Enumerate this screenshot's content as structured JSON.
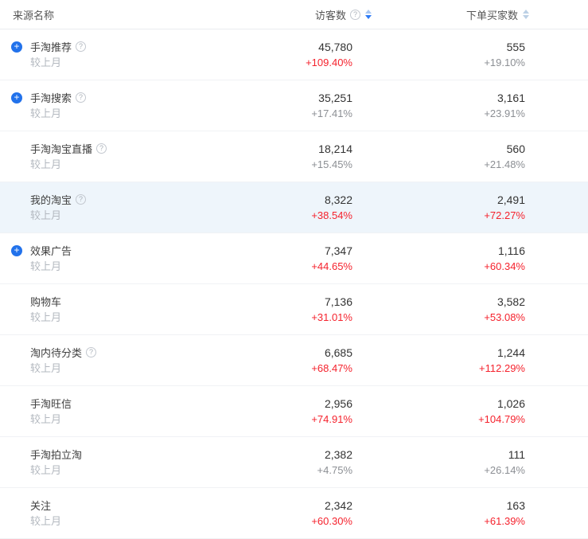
{
  "table": {
    "columns": {
      "source": "来源名称",
      "visitors": "访客数",
      "buyers": "下单买家数"
    },
    "sort_state": {
      "visitors": "descending",
      "buyers": "none"
    },
    "compare_label": "较上月",
    "icons": {
      "expand_glyph": "+",
      "help_glyph": "?"
    },
    "colors": {
      "accent_blue": "#2272eb",
      "sort_active_blue": "#2e7bf6",
      "rise_red": "#f5222d",
      "muted_gray": "#8c8f94",
      "highlight_row_bg": "#eef5fb"
    },
    "rows": [
      {
        "name": "手淘推荐",
        "expand": true,
        "help": true,
        "highlighted": false,
        "visitors": "45,780",
        "visitors_change": {
          "value": "+109.40%",
          "red": true
        },
        "buyers": "555",
        "buyers_change": {
          "value": "+19.10%",
          "red": false
        }
      },
      {
        "name": "手淘搜索",
        "expand": true,
        "help": true,
        "highlighted": false,
        "visitors": "35,251",
        "visitors_change": {
          "value": "+17.41%",
          "red": false
        },
        "buyers": "3,161",
        "buyers_change": {
          "value": "+23.91%",
          "red": false
        }
      },
      {
        "name": "手淘淘宝直播",
        "expand": false,
        "help": true,
        "highlighted": false,
        "visitors": "18,214",
        "visitors_change": {
          "value": "+15.45%",
          "red": false
        },
        "buyers": "560",
        "buyers_change": {
          "value": "+21.48%",
          "red": false
        }
      },
      {
        "name": "我的淘宝",
        "expand": false,
        "help": true,
        "highlighted": true,
        "visitors": "8,322",
        "visitors_change": {
          "value": "+38.54%",
          "red": true
        },
        "buyers": "2,491",
        "buyers_change": {
          "value": "+72.27%",
          "red": true
        }
      },
      {
        "name": "效果广告",
        "expand": true,
        "help": false,
        "highlighted": false,
        "visitors": "7,347",
        "visitors_change": {
          "value": "+44.65%",
          "red": true
        },
        "buyers": "1,116",
        "buyers_change": {
          "value": "+60.34%",
          "red": true
        }
      },
      {
        "name": "购物车",
        "expand": false,
        "help": false,
        "highlighted": false,
        "visitors": "7,136",
        "visitors_change": {
          "value": "+31.01%",
          "red": true
        },
        "buyers": "3,582",
        "buyers_change": {
          "value": "+53.08%",
          "red": true
        }
      },
      {
        "name": "淘内待分类",
        "expand": false,
        "help": true,
        "highlighted": false,
        "visitors": "6,685",
        "visitors_change": {
          "value": "+68.47%",
          "red": true
        },
        "buyers": "1,244",
        "buyers_change": {
          "value": "+112.29%",
          "red": true
        }
      },
      {
        "name": "手淘旺信",
        "expand": false,
        "help": false,
        "highlighted": false,
        "visitors": "2,956",
        "visitors_change": {
          "value": "+74.91%",
          "red": true
        },
        "buyers": "1,026",
        "buyers_change": {
          "value": "+104.79%",
          "red": true
        }
      },
      {
        "name": "手淘拍立淘",
        "expand": false,
        "help": false,
        "highlighted": false,
        "visitors": "2,382",
        "visitors_change": {
          "value": "+4.75%",
          "red": false
        },
        "buyers": "111",
        "buyers_change": {
          "value": "+26.14%",
          "red": false
        }
      },
      {
        "name": "关注",
        "expand": false,
        "help": false,
        "highlighted": false,
        "visitors": "2,342",
        "visitors_change": {
          "value": "+60.30%",
          "red": true
        },
        "buyers": "163",
        "buyers_change": {
          "value": "+61.39%",
          "red": true
        }
      }
    ]
  }
}
